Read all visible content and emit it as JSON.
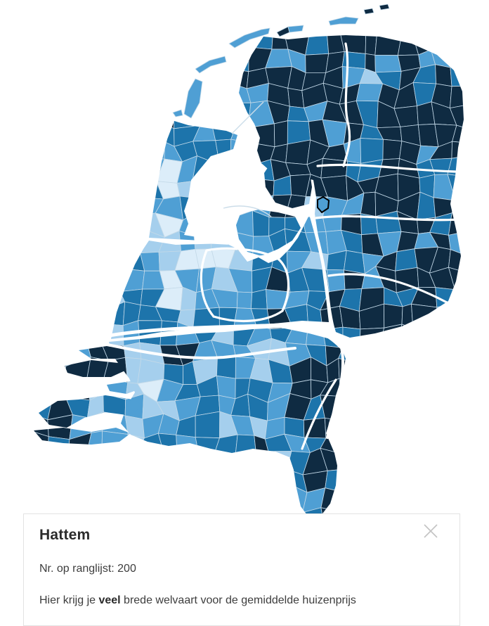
{
  "map": {
    "palette": {
      "c1": "#dcedf9",
      "c2": "#a5cfed",
      "c3": "#4f9fd4",
      "c4": "#1d74ab",
      "c5": "#0f2b42"
    },
    "municipal_border": "#c3d9e8",
    "province_border": "#ffffff",
    "water": "#ffffff",
    "dike_line": "#ccdde9",
    "highlight": {
      "municipality": "Hattem",
      "stroke": "#000000",
      "fill_class": "c3"
    }
  },
  "icons": {
    "close": "✕",
    "close_color": "#c4c4c4"
  },
  "tooltip": {
    "title": "Hattem",
    "rank_line": "Nr. op ranglijst: 200",
    "description_prefix": "Hier krijg je ",
    "description_bold": "veel",
    "description_suffix": " brede welvaart voor de gemiddelde huizenprijs"
  }
}
